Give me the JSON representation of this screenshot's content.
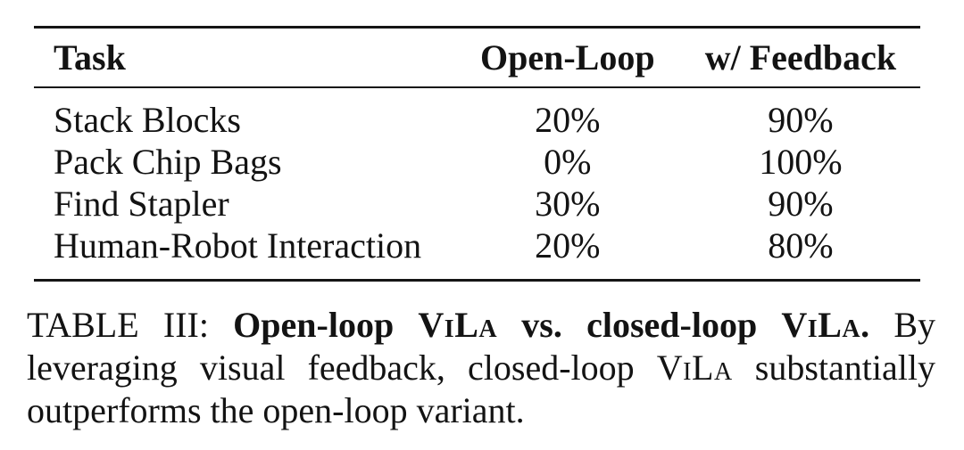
{
  "table": {
    "columns": [
      "Task",
      "Open-Loop",
      "w/ Feedback"
    ],
    "rows": [
      {
        "task": "Stack Blocks",
        "open_loop": "20%",
        "feedback": "90%"
      },
      {
        "task": "Pack Chip Bags",
        "open_loop": "0%",
        "feedback": "100%"
      },
      {
        "task": "Find Stapler",
        "open_loop": "30%",
        "feedback": "90%"
      },
      {
        "task": "Human-Robot Interaction",
        "open_loop": "20%",
        "feedback": "80%"
      }
    ]
  },
  "caption": {
    "segments": [
      {
        "text": "TABLE III: ",
        "style": ""
      },
      {
        "text": "Open-loop ",
        "style": "bold"
      },
      {
        "text": "ViLa",
        "style": "bold sc"
      },
      {
        "text": " vs. closed-loop ",
        "style": "bold"
      },
      {
        "text": "ViLa",
        "style": "bold sc"
      },
      {
        "text": ". ",
        "style": "bold"
      },
      {
        "text": "By leveraging visual feedback, closed-loop ",
        "style": ""
      },
      {
        "text": "ViLa",
        "style": "sc"
      },
      {
        "text": " substantially outperforms the open-loop variant.",
        "style": ""
      }
    ]
  },
  "colors": {
    "text": "#131313",
    "rule": "#151515",
    "background": "#ffffff"
  }
}
